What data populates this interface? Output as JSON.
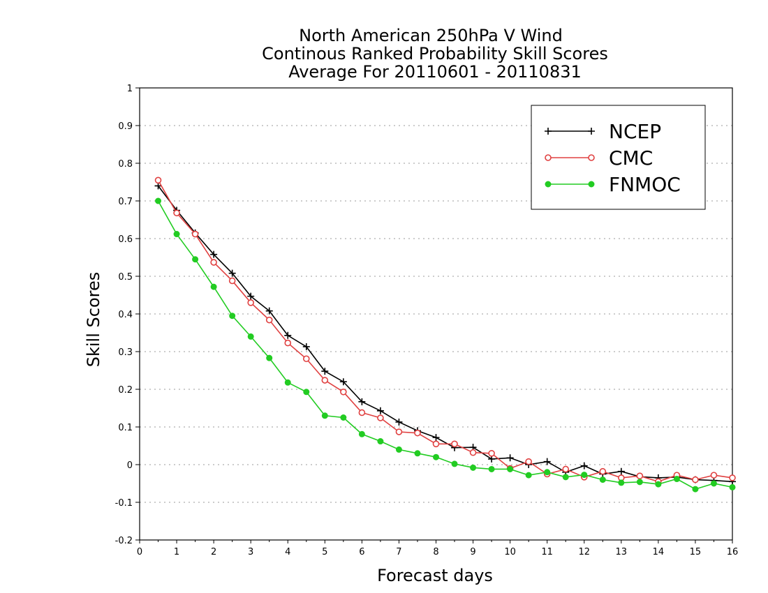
{
  "chart_data": {
    "type": "line",
    "title_lines": [
      "North American 250hPa V Wind",
      "Continous Ranked Probability Skill Scores",
      "Average For 20110601 - 20110831"
    ],
    "xlabel": "Forecast days",
    "ylabel": "Skill Scores",
    "xlim": [
      0,
      16
    ],
    "ylim": [
      -0.2,
      1
    ],
    "xticks": [
      "0",
      "1",
      "2",
      "3",
      "4",
      "5",
      "6",
      "7",
      "8",
      "9",
      "10",
      "11",
      "12",
      "13",
      "14",
      "15",
      "16"
    ],
    "yticks": [
      "-0.2",
      "-0.1",
      "0",
      "0.1",
      "0.2",
      "0.3",
      "0.4",
      "0.5",
      "0.6",
      "0.7",
      "0.8",
      "0.9",
      "1"
    ],
    "grid": "horizontal dotted",
    "legend_position": "top-right",
    "x": [
      0.5,
      1,
      1.5,
      2,
      2.5,
      3,
      3.5,
      4,
      4.5,
      5,
      5.5,
      6,
      6.5,
      7,
      7.5,
      8,
      8.5,
      9,
      9.5,
      10,
      10.5,
      11,
      11.5,
      12,
      12.5,
      13,
      13.5,
      14,
      14.5,
      15,
      15.5,
      16
    ],
    "series": [
      {
        "name": "NCEP",
        "color": "#000000",
        "marker": "plus",
        "values": [
          0.74,
          0.675,
          0.615,
          0.558,
          0.508,
          0.447,
          0.408,
          0.343,
          0.313,
          0.248,
          0.22,
          0.167,
          0.143,
          0.113,
          0.09,
          0.072,
          0.045,
          0.046,
          0.015,
          0.018,
          0.0,
          0.008,
          -0.02,
          -0.003,
          -0.025,
          -0.018,
          -0.032,
          -0.035,
          -0.033,
          -0.04,
          -0.042,
          -0.045
        ]
      },
      {
        "name": "CMC",
        "color": "#e04040",
        "marker": "open-circle",
        "values": [
          0.755,
          0.668,
          0.612,
          0.537,
          0.488,
          0.43,
          0.384,
          0.323,
          0.281,
          0.224,
          0.193,
          0.138,
          0.124,
          0.087,
          0.084,
          0.055,
          0.055,
          0.032,
          0.03,
          -0.01,
          0.008,
          -0.025,
          -0.012,
          -0.033,
          -0.018,
          -0.035,
          -0.03,
          -0.045,
          -0.028,
          -0.04,
          -0.028,
          -0.035
        ]
      },
      {
        "name": "FNMOC",
        "color": "#22cc22",
        "marker": "filled-circle",
        "values": [
          0.7,
          0.612,
          0.545,
          0.472,
          0.395,
          0.34,
          0.283,
          0.218,
          0.193,
          0.13,
          0.125,
          0.081,
          0.062,
          0.04,
          0.03,
          0.02,
          0.002,
          -0.008,
          -0.012,
          -0.012,
          -0.028,
          -0.02,
          -0.033,
          -0.027,
          -0.04,
          -0.048,
          -0.046,
          -0.052,
          -0.038,
          -0.065,
          -0.05,
          -0.06
        ]
      }
    ]
  }
}
